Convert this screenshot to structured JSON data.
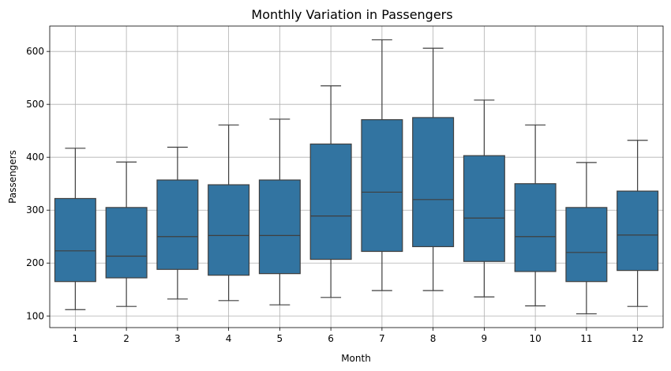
{
  "chart_data": {
    "type": "box",
    "title": "Monthly Variation in Passengers",
    "xlabel": "Month",
    "ylabel": "Passengers",
    "categories": [
      "1",
      "2",
      "3",
      "4",
      "5",
      "6",
      "7",
      "8",
      "9",
      "10",
      "11",
      "12"
    ],
    "yticks": [
      100,
      200,
      300,
      400,
      500,
      600
    ],
    "ylim": [
      78,
      648
    ],
    "grid": true,
    "box_color": "#3274a1",
    "edge_color": "#3f3f3f",
    "boxes": [
      {
        "month": "1",
        "min": 112,
        "q1": 165,
        "median": 223,
        "q3": 322,
        "max": 417
      },
      {
        "month": "2",
        "min": 118,
        "q1": 172,
        "median": 213,
        "q3": 305,
        "max": 391
      },
      {
        "month": "3",
        "min": 132,
        "q1": 188,
        "median": 250,
        "q3": 357,
        "max": 419
      },
      {
        "month": "4",
        "min": 129,
        "q1": 177,
        "median": 252,
        "q3": 348,
        "max": 461
      },
      {
        "month": "5",
        "min": 121,
        "q1": 180,
        "median": 252,
        "q3": 357,
        "max": 472
      },
      {
        "month": "6",
        "min": 135,
        "q1": 207,
        "median": 289,
        "q3": 425,
        "max": 535
      },
      {
        "month": "7",
        "min": 148,
        "q1": 222,
        "median": 334,
        "q3": 471,
        "max": 622
      },
      {
        "month": "8",
        "min": 148,
        "q1": 231,
        "median": 320,
        "q3": 475,
        "max": 606
      },
      {
        "month": "9",
        "min": 136,
        "q1": 203,
        "median": 285,
        "q3": 403,
        "max": 508
      },
      {
        "month": "10",
        "min": 119,
        "q1": 184,
        "median": 250,
        "q3": 350,
        "max": 461
      },
      {
        "month": "11",
        "min": 104,
        "q1": 165,
        "median": 220,
        "q3": 305,
        "max": 390
      },
      {
        "month": "12",
        "min": 118,
        "q1": 186,
        "median": 253,
        "q3": 336,
        "max": 432
      }
    ]
  }
}
